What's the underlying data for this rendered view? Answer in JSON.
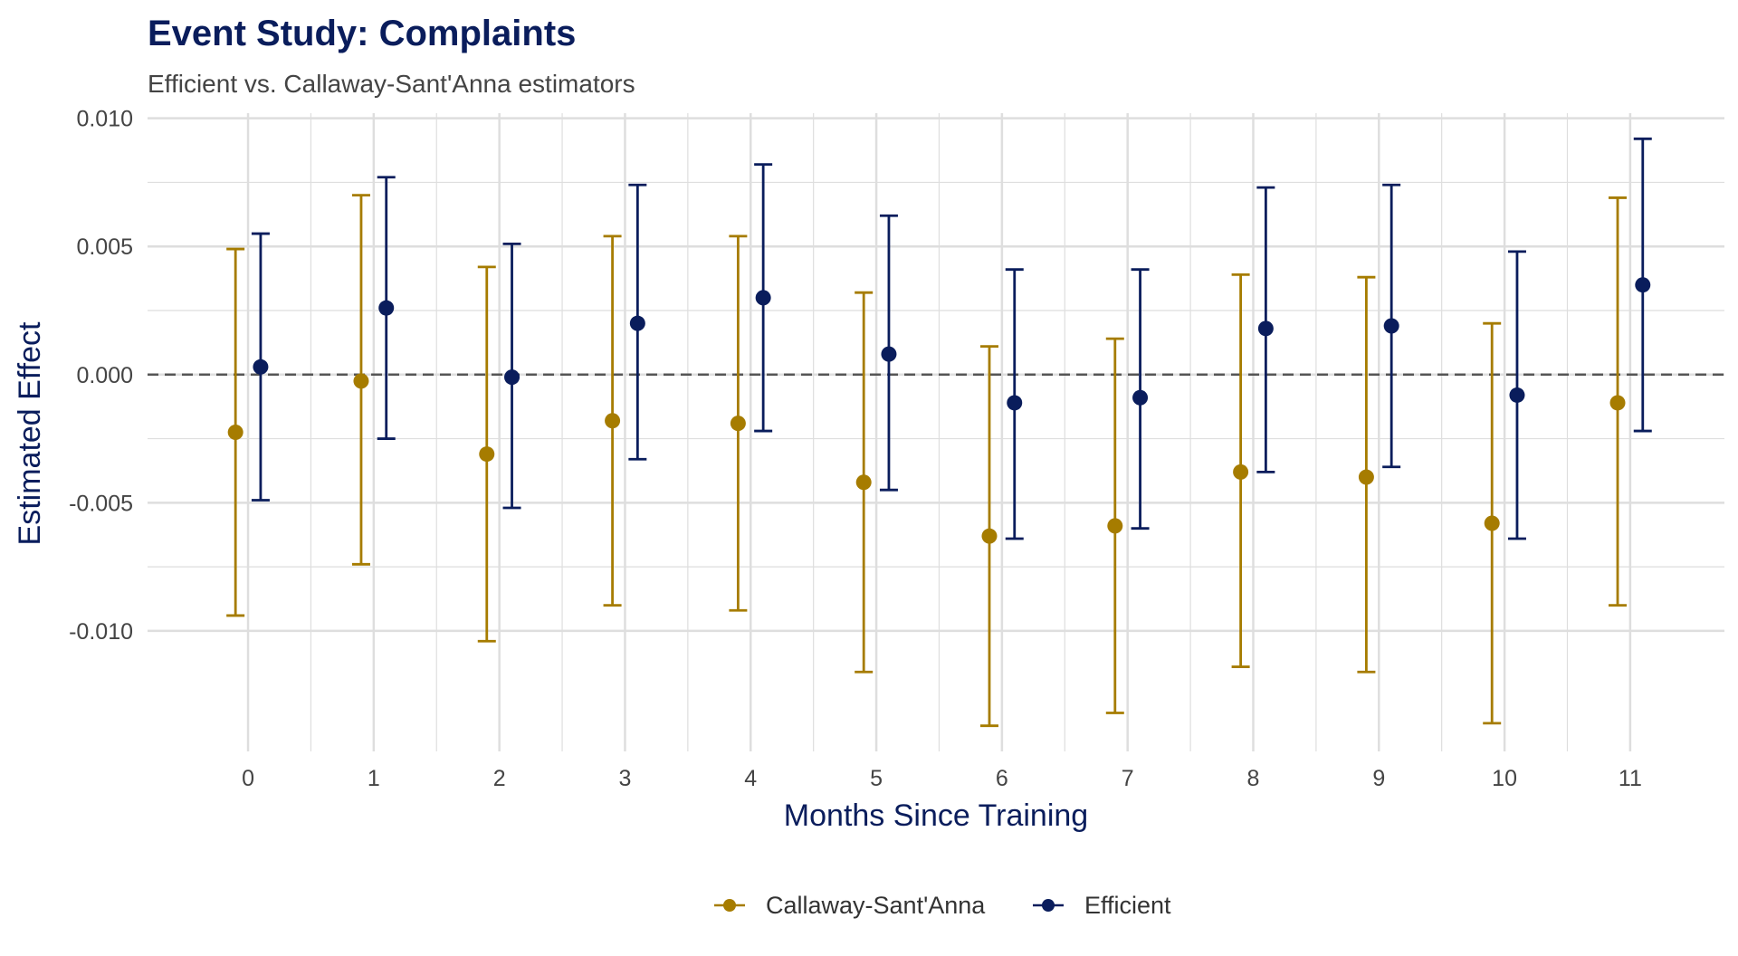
{
  "chart_data": {
    "type": "scatter",
    "title": "Event Study: Complaints",
    "subtitle": "Efficient vs. Callaway-Sant'Anna estimators",
    "xlabel": "Months Since Training",
    "ylabel": "Estimated Effect",
    "x": [
      0,
      1,
      2,
      3,
      4,
      5,
      6,
      7,
      8,
      9,
      10,
      11
    ],
    "x_tick_labels": [
      "0",
      "1",
      "2",
      "3",
      "4",
      "5",
      "6",
      "7",
      "8",
      "9",
      "10",
      "11"
    ],
    "y_ticks": [
      -0.01,
      -0.005,
      0.0,
      0.005,
      0.01
    ],
    "y_tick_labels": [
      "-0.010",
      "-0.005",
      "0.000",
      "0.005",
      "0.010"
    ],
    "xlim": [
      -0.8,
      11.75
    ],
    "ylim": [
      -0.0147,
      0.0102
    ],
    "reference_line": 0.0,
    "grid": true,
    "legend_position": "bottom",
    "series": [
      {
        "name": "Callaway-Sant'Anna",
        "color": "#A67C00",
        "values": [
          -0.00225,
          -0.00025,
          -0.0031,
          -0.0018,
          -0.0019,
          -0.0042,
          -0.0063,
          -0.0059,
          -0.0038,
          -0.004,
          -0.0058,
          -0.0011
        ],
        "lower": [
          -0.0094,
          -0.0074,
          -0.0104,
          -0.009,
          -0.0092,
          -0.0116,
          -0.0137,
          -0.0132,
          -0.0114,
          -0.0116,
          -0.0136,
          -0.009
        ],
        "upper": [
          0.0049,
          0.007,
          0.0042,
          0.0054,
          0.0054,
          0.0032,
          0.0011,
          0.0014,
          0.0039,
          0.0038,
          0.002,
          0.0069
        ]
      },
      {
        "name": "Efficient",
        "color": "#0A1D5C",
        "values": [
          0.0003,
          0.0026,
          -0.0001,
          0.002,
          0.003,
          0.0008,
          -0.0011,
          -0.0009,
          0.0018,
          0.0019,
          -0.0008,
          0.0035
        ],
        "lower": [
          -0.0049,
          -0.0025,
          -0.0052,
          -0.0033,
          -0.0022,
          -0.0045,
          -0.0064,
          -0.006,
          -0.0038,
          -0.0036,
          -0.0064,
          -0.0022
        ],
        "upper": [
          0.0055,
          0.0077,
          0.0051,
          0.0074,
          0.0082,
          0.0062,
          0.0041,
          0.0041,
          0.0073,
          0.0074,
          0.0048,
          0.0092
        ]
      }
    ],
    "colors": {
      "title": "#0A1D5C",
      "axis_label": "#0A1D5C",
      "grid": "#DEDEDE",
      "reference": "#555555"
    }
  }
}
